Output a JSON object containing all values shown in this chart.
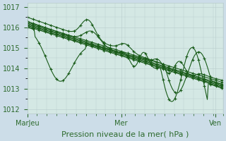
{
  "title": "",
  "xlabel": "Pression niveau de la mer( hPa )",
  "ylabel": "",
  "bg_color": "#ccdde8",
  "plot_bg_color": "#d4e8e4",
  "grid_color": "#b8cccc",
  "line_color": "#1a5c1a",
  "marker_color": "#1a5c1a",
  "ylim": [
    1011.8,
    1017.2
  ],
  "yticks": [
    1012,
    1013,
    1014,
    1015,
    1016,
    1017
  ],
  "xtick_labels": [
    "MarJeu",
    "Mer",
    "Ven"
  ],
  "xtick_positions": [
    0,
    0.48,
    0.96
  ],
  "font_color": "#2d6a2d",
  "tick_font_size": 7,
  "xlabel_font_size": 8,
  "linewidth": 0.8,
  "markersize": 2.8,
  "marker_every": 6
}
